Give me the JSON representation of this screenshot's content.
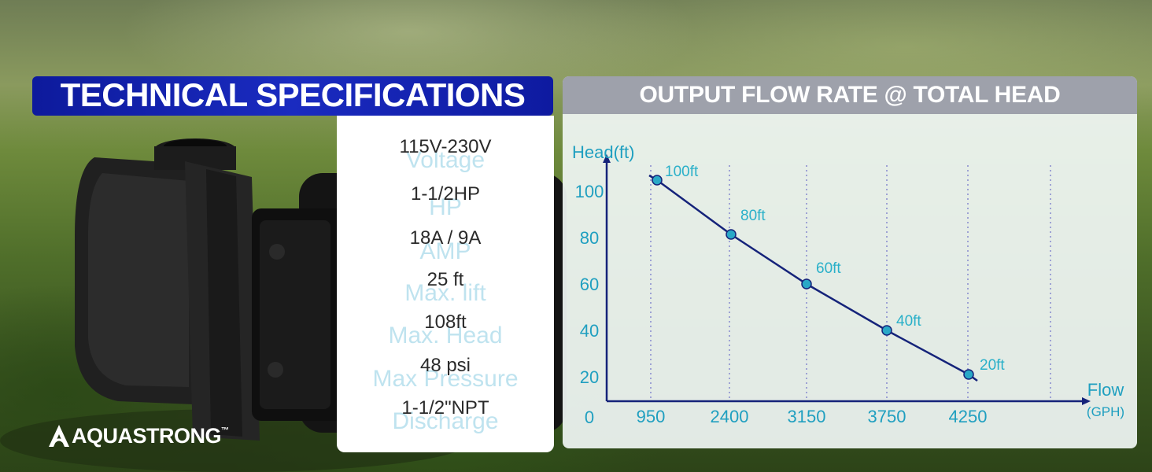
{
  "brand": {
    "name": "AQUASTRONG",
    "tm": "™"
  },
  "specs": {
    "title": "TECHNICAL SPECIFICATIONS",
    "rows": [
      {
        "label": "Voltage",
        "value": "115V-230V"
      },
      {
        "label": "HP",
        "value": "1-1/2HP"
      },
      {
        "label": "AMP",
        "value": "18A / 9A"
      },
      {
        "label": "Max. lift",
        "value": "25 ft"
      },
      {
        "label": "Max. Head",
        "value": "108ft"
      },
      {
        "label": "Max Pressure",
        "value": "48 psi"
      },
      {
        "label": "Discharge",
        "value": "1-1/2\"NPT"
      }
    ]
  },
  "chart_data": {
    "type": "line",
    "title": "OUTPUT FLOW RATE @ TOTAL HEAD",
    "ylabel": "Head(ft)",
    "xlabel": "Flow",
    "xlabel_unit": "(GPH)",
    "origin_label": "0",
    "categories": [
      "950",
      "2400",
      "3150",
      "3750",
      "4250"
    ],
    "y_ticks": [
      100,
      80,
      60,
      40,
      20
    ],
    "ylim": [
      0,
      100
    ],
    "grid": "vertical dotted",
    "series": [
      {
        "values": [
          100,
          80,
          60,
          40,
          20
        ],
        "point_labels": [
          "100ft",
          "80ft",
          "60ft",
          "40ft",
          "20ft"
        ]
      }
    ],
    "colors": {
      "line": "#15237a",
      "point": "#29a8c7",
      "label": "#2ab0c9",
      "axis": "#15237a"
    }
  }
}
